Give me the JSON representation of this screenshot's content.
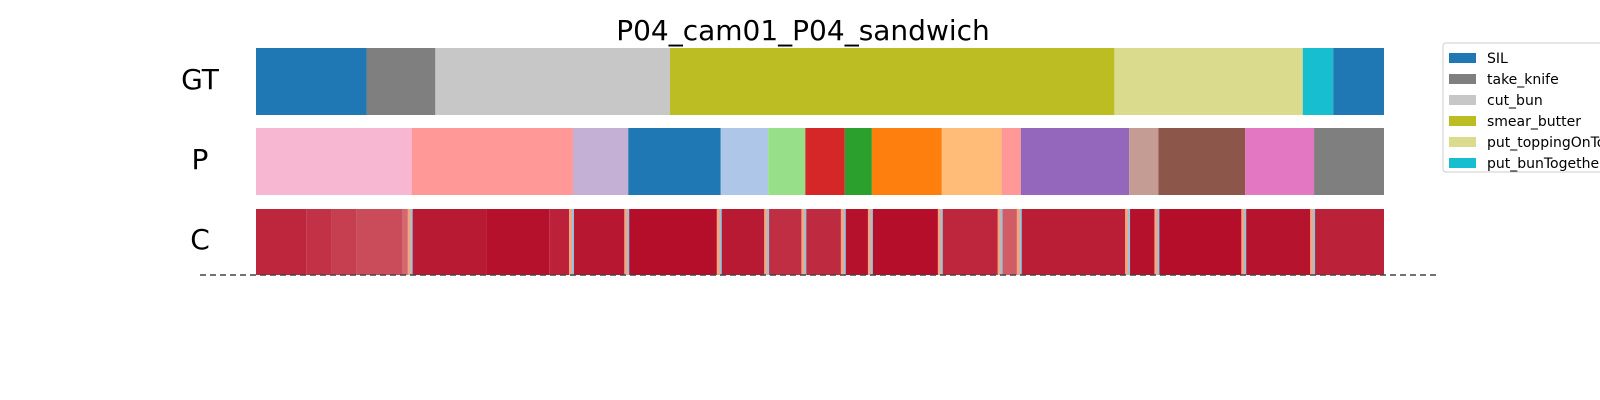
{
  "chart_data": {
    "type": "segmentation",
    "title": "P04_cam01_P04_sandwich",
    "rows": [
      "GT",
      "P",
      "C"
    ],
    "frames": 1000,
    "gt_segments": [
      {
        "label": "SIL",
        "start": 0,
        "end": 98
      },
      {
        "label": "take_knife",
        "start": 98,
        "end": 159
      },
      {
        "label": "cut_bun",
        "start": 159,
        "end": 367
      },
      {
        "label": "smear_butter",
        "start": 367,
        "end": 761
      },
      {
        "label": "put_toppingOnTop",
        "start": 761,
        "end": 928
      },
      {
        "label": "put_bunTogether",
        "start": 928,
        "end": 955
      },
      {
        "label": "SIL",
        "start": 955,
        "end": 1000
      }
    ],
    "p_segments": [
      {
        "color": "#f7b6d2",
        "start": 0,
        "end": 138
      },
      {
        "color": "#ff9896",
        "start": 138,
        "end": 281
      },
      {
        "color": "#c5b0d5",
        "start": 281,
        "end": 330
      },
      {
        "color": "#1f77b4",
        "start": 330,
        "end": 412
      },
      {
        "color": "#aec7e8",
        "start": 412,
        "end": 454
      },
      {
        "color": "#98df8a",
        "start": 454,
        "end": 487
      },
      {
        "color": "#d62728",
        "start": 487,
        "end": 522
      },
      {
        "color": "#2ca02c",
        "start": 522,
        "end": 546
      },
      {
        "color": "#ff7f0e",
        "start": 546,
        "end": 608
      },
      {
        "color": "#ffbb78",
        "start": 608,
        "end": 661
      },
      {
        "color": "#ff9896",
        "start": 661,
        "end": 678
      },
      {
        "color": "#9467bd",
        "start": 678,
        "end": 774
      },
      {
        "color": "#c49c94",
        "start": 774,
        "end": 800
      },
      {
        "color": "#8c564b",
        "start": 800,
        "end": 877
      },
      {
        "color": "#e377c2",
        "start": 877,
        "end": 938
      },
      {
        "color": "#7f7f7f",
        "start": 938,
        "end": 1000
      }
    ],
    "confidence_segments": [
      {
        "start": 0,
        "end": 45,
        "value": 0.86
      },
      {
        "start": 45,
        "end": 67,
        "value": 0.8
      },
      {
        "start": 67,
        "end": 89,
        "value": 0.74
      },
      {
        "start": 89,
        "end": 130,
        "value": 0.68
      },
      {
        "start": 130,
        "end": 138,
        "value": 0.55
      },
      {
        "start": 138,
        "end": 204,
        "value": 0.92
      },
      {
        "start": 204,
        "end": 260,
        "value": 0.96
      },
      {
        "start": 260,
        "end": 281,
        "value": 0.88
      },
      {
        "start": 281,
        "end": 330,
        "value": 0.93
      },
      {
        "start": 330,
        "end": 412,
        "value": 0.97
      },
      {
        "start": 412,
        "end": 454,
        "value": 0.92
      },
      {
        "start": 454,
        "end": 487,
        "value": 0.82
      },
      {
        "start": 487,
        "end": 522,
        "value": 0.84
      },
      {
        "start": 522,
        "end": 546,
        "value": 0.96
      },
      {
        "start": 546,
        "end": 608,
        "value": 0.97
      },
      {
        "start": 608,
        "end": 661,
        "value": 0.86
      },
      {
        "start": 661,
        "end": 678,
        "value": 0.6
      },
      {
        "start": 678,
        "end": 774,
        "value": 0.9
      },
      {
        "start": 774,
        "end": 800,
        "value": 0.96
      },
      {
        "start": 800,
        "end": 877,
        "value": 0.97
      },
      {
        "start": 877,
        "end": 938,
        "value": 0.95
      },
      {
        "start": 938,
        "end": 1000,
        "value": 0.88
      }
    ],
    "boundaries": [
      138,
      281,
      330,
      412,
      454,
      487,
      522,
      546,
      608,
      661,
      678,
      774,
      800,
      877,
      938
    ],
    "legend": [
      {
        "label": "SIL",
        "color": "#1f77b4"
      },
      {
        "label": "take_knife",
        "color": "#7f7f7f"
      },
      {
        "label": "cut_bun",
        "color": "#c7c7c7"
      },
      {
        "label": "smear_butter",
        "color": "#bcbd22"
      },
      {
        "label": "put_toppingOnTop",
        "color": "#dbdb8d"
      },
      {
        "label": "put_bunTogether",
        "color": "#17becf"
      }
    ],
    "legend_position": "upper-right"
  }
}
